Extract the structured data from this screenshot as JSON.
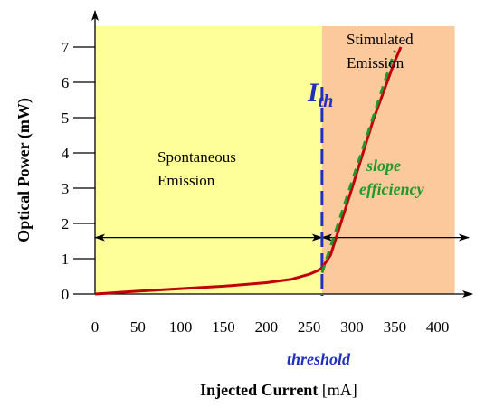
{
  "chart_data": {
    "type": "line",
    "xlabel_bold": "Injected Current",
    "xlabel_unit": " [mA]",
    "ylabel": "Optical Power (mW)",
    "xlim": [
      0,
      450
    ],
    "ylim": [
      0,
      7.6
    ],
    "x_ticks": [
      0,
      50,
      100,
      150,
      200,
      250,
      300,
      350,
      400
    ],
    "y_ticks": [
      0,
      1,
      2,
      3,
      4,
      5,
      6,
      7
    ],
    "regions": [
      {
        "name": "spontaneous",
        "label_lines": [
          "Spontaneous",
          "Emission"
        ],
        "x_range": [
          0,
          265
        ],
        "color": "#ffff99"
      },
      {
        "name": "stimulated",
        "label_lines": [
          "Stimulated",
          "Emission"
        ],
        "x_range": [
          265,
          420
        ],
        "color": "#fbc99b"
      }
    ],
    "threshold": {
      "x": 265,
      "label": "threshold",
      "symbol_main": "I",
      "symbol_sub": "th",
      "color": "#1f2fbf"
    },
    "power_curve": {
      "color": "#c0000a",
      "x": [
        0,
        50,
        100,
        150,
        200,
        230,
        250,
        260,
        265,
        275,
        300,
        325,
        350,
        357
      ],
      "y": [
        0.0,
        0.08,
        0.15,
        0.22,
        0.32,
        0.42,
        0.56,
        0.66,
        0.74,
        1.1,
        3.0,
        4.95,
        6.6,
        7.0
      ]
    },
    "slope_line": {
      "label_lines": [
        "slope",
        "efficiency"
      ],
      "x": [
        265,
        350
      ],
      "y": [
        0.6,
        6.9
      ],
      "color": "#1f9a2a"
    },
    "arrow_y": 1.6
  }
}
